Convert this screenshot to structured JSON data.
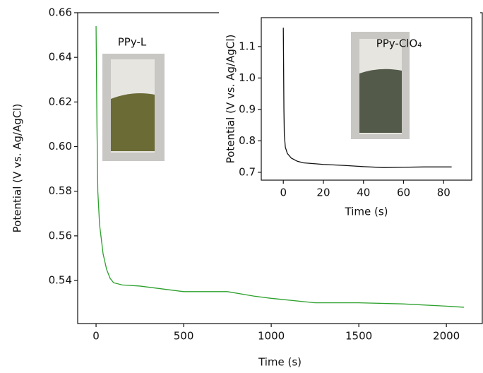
{
  "chart_data": [
    {
      "type": "line",
      "x_label": "Time (s)",
      "y_label": "Potential (V vs. Ag/AgCl)",
      "annotation": "PPy-L",
      "x": [
        0,
        5,
        10,
        20,
        40,
        60,
        80,
        100,
        150,
        250,
        400,
        500,
        750,
        900,
        1000,
        1250,
        1500,
        1750,
        2000,
        2100
      ],
      "series": [
        {
          "name": "PPy-L",
          "color": "#2ca02c",
          "values": [
            0.654,
            0.61,
            0.58,
            0.565,
            0.552,
            0.545,
            0.541,
            0.539,
            0.538,
            0.5375,
            0.536,
            0.535,
            0.535,
            0.533,
            0.532,
            0.53,
            0.53,
            0.5295,
            0.5285,
            0.528
          ]
        }
      ],
      "xlim": [
        -105,
        2205
      ],
      "xticks": [
        0,
        500,
        1000,
        1500,
        2000
      ],
      "ylim": [
        0.5207,
        0.66
      ],
      "yticks": [
        0.66,
        0.64,
        0.62,
        {
          "value": 0.6,
          "label": "0.60"
        },
        0.58,
        0.56,
        0.54
      ]
    },
    {
      "type": "line",
      "x_label": "Time (s)",
      "y_label": "Potential (V vs. Ag/AgCl)",
      "annotation": "PPy-ClO₄",
      "x": [
        0,
        0.3,
        0.5,
        1,
        2,
        4,
        7,
        10,
        20,
        30,
        40,
        50,
        60,
        70,
        84
      ],
      "series": [
        {
          "name": "PPy-ClO₄",
          "color": "#111111",
          "values": [
            1.16,
            0.9,
            0.82,
            0.78,
            0.76,
            0.745,
            0.735,
            0.73,
            0.725,
            0.722,
            0.718,
            0.715,
            0.716,
            0.717,
            0.717
          ]
        }
      ],
      "xlim": [
        -11,
        94
      ],
      "xticks": [
        0,
        20,
        40,
        60,
        80
      ],
      "ylim": [
        0.675,
        1.192
      ],
      "yticks": [
        0.7,
        0.8,
        0.9,
        {
          "value": 1,
          "label": "1.0"
        },
        1.1
      ]
    }
  ]
}
